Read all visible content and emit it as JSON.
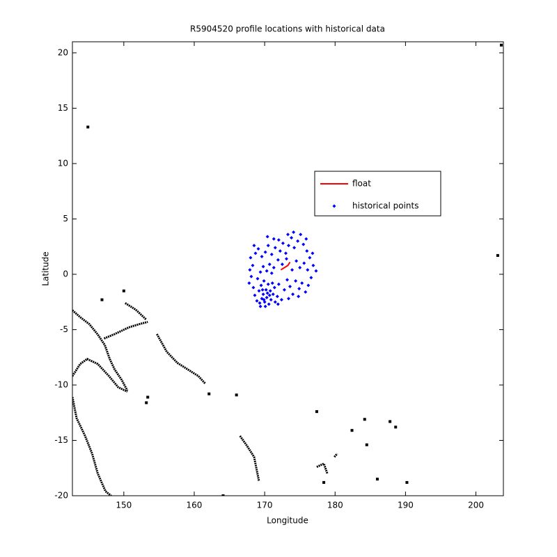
{
  "chart_data": {
    "type": "scatter",
    "title": "R5904520 profile locations with historical data",
    "x_label": "Longitude",
    "y_label": "Latitude",
    "xlim": [
      142.7,
      203.9
    ],
    "ylim": [
      -20,
      21
    ],
    "xticks": [
      150,
      160,
      170,
      180,
      190,
      200
    ],
    "yticks": [
      -20,
      -15,
      -10,
      -5,
      0,
      5,
      10,
      15,
      20
    ],
    "series": [
      {
        "name": "float",
        "color": "#ff0000",
        "mode": "line",
        "x": [
          172.3,
          172.8,
          173.3,
          173.6
        ],
        "y": [
          0.4,
          0.6,
          0.8,
          1.1
        ]
      },
      {
        "name": "historical points",
        "color": "#0000ff",
        "mode": "markers",
        "x": [
          168.0,
          168.3,
          168.1,
          168.4,
          168.6,
          168.9,
          169.3,
          169.6,
          169.8,
          170.0,
          170.3,
          170.6,
          170.9,
          171.2,
          171.5,
          171.8,
          169.2,
          169.5,
          169.9,
          170.2,
          170.5,
          170.8,
          171.1,
          171.4,
          169.0,
          169.4,
          169.8,
          170.3,
          170.7,
          171.0,
          171.3,
          168.7,
          169.1,
          169.6,
          170.1,
          170.5,
          171.0,
          171.5,
          171.9,
          172.2,
          172.6,
          173.0,
          173.4,
          173.8,
          174.2,
          174.7,
          175.1,
          175.5,
          176.0,
          176.4,
          176.9,
          177.3,
          176.6,
          176.2,
          175.8,
          175.3,
          174.9,
          174.4,
          174.0,
          173.6,
          173.2,
          172.8,
          172.4,
          172.0,
          173.9,
          174.5,
          175.0,
          175.6,
          176.1,
          172.5,
          173.1,
          172.0,
          173.3,
          174.1,
          171.3,
          170.4,
          167.8,
          167.9,
          169.4,
          170.1,
          170.7,
          169.9,
          170.4,
          169.7,
          171.9,
          173.4,
          174.8,
          176.8,
          175.9,
          168.5
        ],
        "y": [
          1.5,
          0.8,
          -0.2,
          -1.2,
          -1.9,
          -2.4,
          -2.6,
          -2.2,
          -1.8,
          -2.5,
          -2.1,
          -2.7,
          -2.3,
          -1.8,
          -2.5,
          -2.0,
          -1.5,
          -1.0,
          -0.6,
          -1.4,
          -0.9,
          -1.5,
          -0.8,
          -1.2,
          -0.4,
          0.2,
          0.7,
          0.3,
          0.9,
          0.1,
          0.6,
          1.9,
          2.3,
          1.6,
          2.0,
          2.6,
          1.8,
          2.4,
          1.3,
          2.1,
          2.8,
          1.9,
          2.6,
          3.3,
          2.4,
          3.0,
          3.6,
          2.7,
          2.1,
          1.5,
          0.8,
          0.3,
          -0.3,
          -1.0,
          -1.6,
          -0.8,
          -1.3,
          -0.6,
          -1.8,
          -1.1,
          -0.5,
          -1.4,
          -2.3,
          -0.9,
          0.4,
          1.2,
          0.6,
          1.0,
          0.4,
          0.9,
          1.4,
          3.1,
          3.6,
          3.8,
          3.2,
          3.4,
          -0.8,
          0.4,
          -2.9,
          -2.9,
          -1.9,
          -2.3,
          -1.7,
          -1.4,
          -2.7,
          -2.2,
          -2.0,
          1.9,
          3.2,
          2.6
        ]
      }
    ],
    "coastline_color": "#000000",
    "coastlines": [
      {
        "x": [
          142.7,
          143.8,
          145.1,
          146.3,
          147.3,
          148.0,
          148.7,
          149.7,
          150.5
        ],
        "y": [
          -3.25,
          -3.87,
          -4.5,
          -5.44,
          -6.39,
          -7.65,
          -8.6,
          -9.54,
          -10.5
        ]
      },
      {
        "x": [
          142.7,
          143.8,
          144.8,
          146.3,
          147.9,
          149.2,
          150.5
        ],
        "y": [
          -9.2,
          -8.1,
          -7.65,
          -8.1,
          -9.2,
          -10.2,
          -10.6
        ]
      },
      {
        "x": [
          142.7,
          143.3,
          144.5,
          145.5,
          146.3,
          147.4,
          148.2
        ],
        "y": [
          -11.1,
          -13.0,
          -14.6,
          -16.2,
          -18.0,
          -19.6,
          -20
        ]
      },
      {
        "x": [
          147.2,
          148.7,
          150.7,
          152.2,
          153.4
        ],
        "y": [
          -5.8,
          -5.4,
          -4.8,
          -4.5,
          -4.3
        ]
      },
      {
        "x": [
          150.2,
          151.7,
          153.2
        ],
        "y": [
          -2.6,
          -3.2,
          -4.1
        ]
      },
      {
        "x": [
          154.7,
          156.1,
          157.6,
          159.1,
          160.6,
          161.6
        ],
        "y": [
          -5.4,
          -7.0,
          -8.0,
          -8.6,
          -9.2,
          -9.9
        ]
      },
      {
        "x": [
          166.5,
          167.5,
          168.5,
          169.2
        ],
        "y": [
          -14.6,
          -15.5,
          -16.5,
          -18.7
        ]
      },
      {
        "x": [
          177.4,
          178.4,
          178.9
        ],
        "y": [
          -17.4,
          -17.1,
          -18.0
        ]
      },
      {
        "x": [
          179.9,
          180.3
        ],
        "y": [
          -16.5,
          -16.2
        ]
      }
    ],
    "islands": {
      "x": [
        146.9,
        150,
        144.9,
        203.1,
        203.6,
        190.2,
        186,
        184.5,
        187.8,
        188.6,
        184.2,
        182.4,
        177.4,
        153.4,
        153.2,
        162.1,
        166,
        178.4,
        164.1
      ],
      "y": [
        -2.3,
        -1.5,
        13.3,
        1.7,
        20.7,
        -18.8,
        -18.5,
        -15.4,
        -13.3,
        -13.8,
        -13.1,
        -14.1,
        -12.4,
        -11.1,
        -11.6,
        -10.8,
        -10.9,
        -18.8,
        -20
      ]
    }
  }
}
